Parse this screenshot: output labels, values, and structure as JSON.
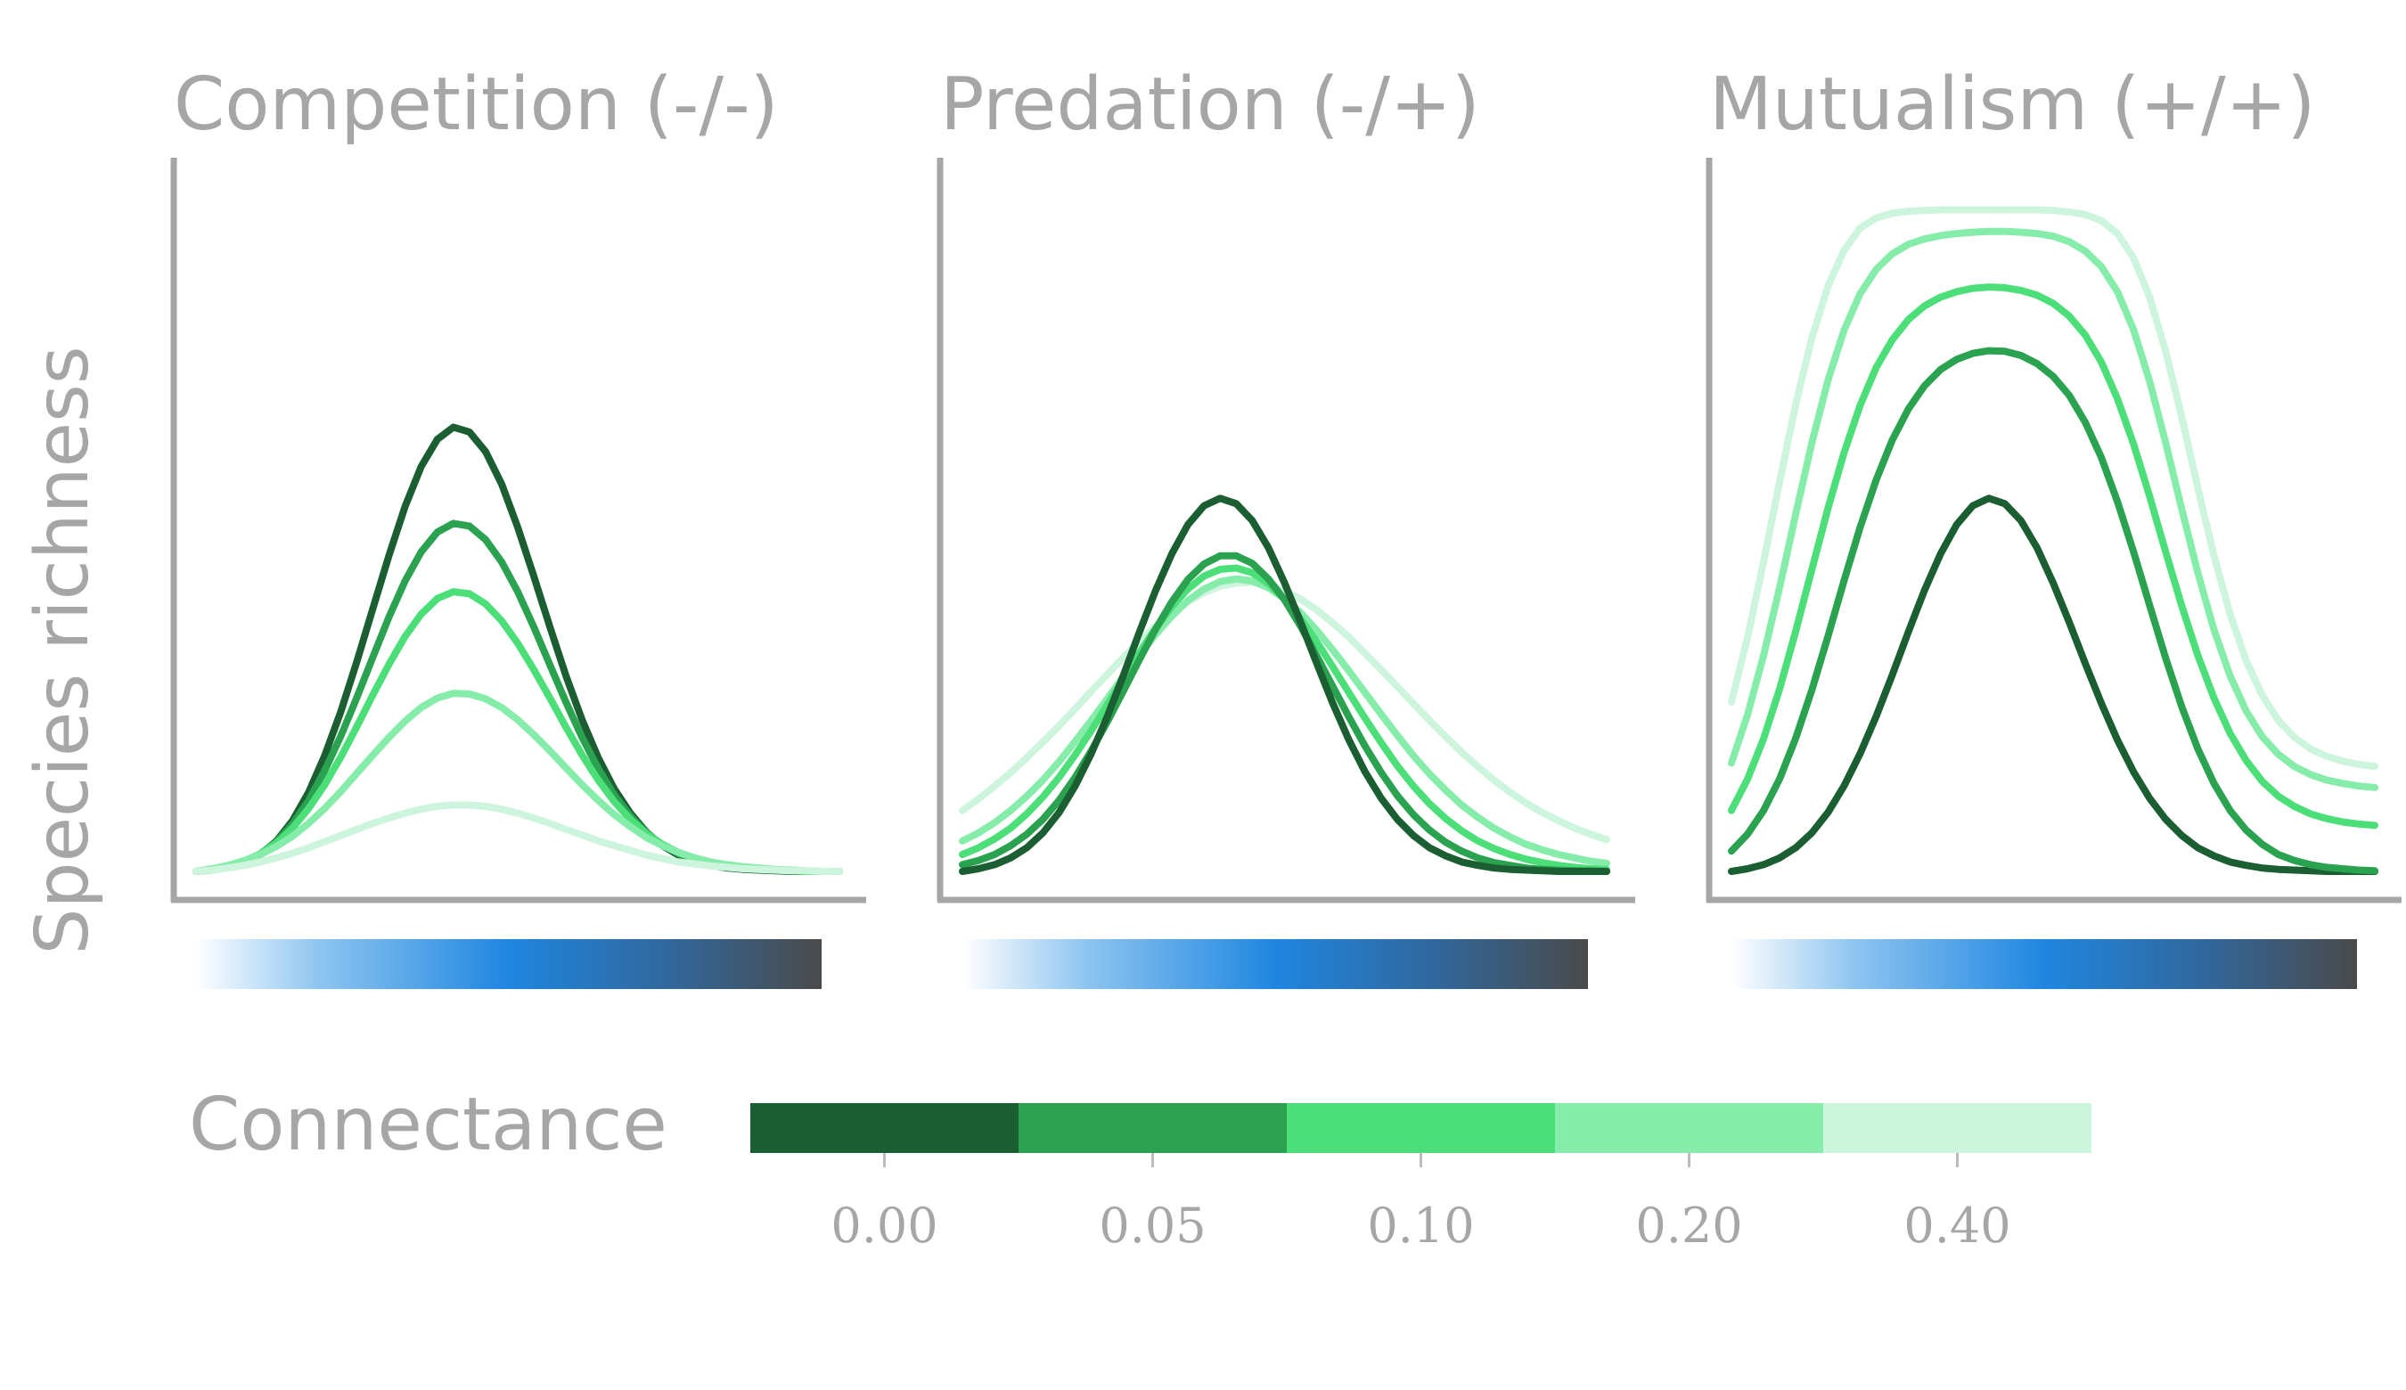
{
  "chart_data": {
    "type": "line",
    "ylabel": "Species richness",
    "legend": {
      "title": "Connectance",
      "entries": [
        {
          "label": "0.00",
          "color": "#1b5e32"
        },
        {
          "label": "0.05",
          "color": "#2aa24f"
        },
        {
          "label": "0.10",
          "color": "#4cde78"
        },
        {
          "label": "0.20",
          "color": "#86ecaa"
        },
        {
          "label": "0.40",
          "color": "#cdf4dc"
        }
      ]
    },
    "gradient_bar": {
      "colors": [
        "#ffffff",
        "#8cc4f0",
        "#1f86e0",
        "#30689e",
        "#4a4a4a"
      ]
    },
    "x": [
      0.0,
      0.025,
      0.05,
      0.075,
      0.1,
      0.125,
      0.15,
      0.175,
      0.2,
      0.225,
      0.25,
      0.275,
      0.3,
      0.325,
      0.35,
      0.375,
      0.4,
      0.425,
      0.45,
      0.475,
      0.5,
      0.525,
      0.55,
      0.575,
      0.6,
      0.625,
      0.65,
      0.675,
      0.7,
      0.725,
      0.75,
      0.775,
      0.8,
      0.825,
      0.85,
      0.875,
      0.9,
      0.925,
      0.95,
      0.975,
      1.0
    ],
    "ylim": [
      0,
      1
    ],
    "panels": [
      {
        "title": "Competition (-/-)",
        "series": [
          {
            "connectance": "0.00",
            "color": "#1b5e32",
            "values": [
              0.0,
              0.002,
              0.006,
              0.013,
              0.025,
              0.045,
              0.075,
              0.117,
              0.171,
              0.236,
              0.31,
              0.389,
              0.467,
              0.539,
              0.598,
              0.638,
              0.656,
              0.649,
              0.62,
              0.572,
              0.508,
              0.436,
              0.361,
              0.289,
              0.224,
              0.168,
              0.122,
              0.086,
              0.058,
              0.038,
              0.024,
              0.015,
              0.009,
              0.005,
              0.003,
              0.002,
              0.001,
              0.0,
              0.0,
              0.0,
              0.0
            ]
          },
          {
            "connectance": "0.05",
            "color": "#2aa24f",
            "values": [
              0.0,
              0.003,
              0.007,
              0.014,
              0.026,
              0.044,
              0.07,
              0.105,
              0.149,
              0.2,
              0.257,
              0.317,
              0.376,
              0.429,
              0.472,
              0.501,
              0.514,
              0.51,
              0.49,
              0.457,
              0.413,
              0.361,
              0.305,
              0.25,
              0.198,
              0.152,
              0.113,
              0.082,
              0.057,
              0.039,
              0.026,
              0.017,
              0.011,
              0.007,
              0.004,
              0.003,
              0.002,
              0.001,
              0.0,
              0.0,
              0.0
            ]
          },
          {
            "connectance": "0.10",
            "color": "#4cde78",
            "values": [
              0.0,
              0.003,
              0.008,
              0.015,
              0.026,
              0.042,
              0.064,
              0.093,
              0.128,
              0.169,
              0.214,
              0.261,
              0.306,
              0.347,
              0.38,
              0.403,
              0.413,
              0.41,
              0.395,
              0.37,
              0.337,
              0.298,
              0.256,
              0.213,
              0.172,
              0.135,
              0.103,
              0.077,
              0.056,
              0.04,
              0.028,
              0.019,
              0.013,
              0.008,
              0.005,
              0.003,
              0.002,
              0.001,
              0.0,
              0.0,
              0.0
            ]
          },
          {
            "connectance": "0.20",
            "color": "#86ecaa",
            "values": [
              0.0,
              0.004,
              0.009,
              0.016,
              0.025,
              0.037,
              0.052,
              0.071,
              0.093,
              0.118,
              0.145,
              0.172,
              0.198,
              0.222,
              0.242,
              0.256,
              0.263,
              0.262,
              0.255,
              0.242,
              0.224,
              0.202,
              0.178,
              0.153,
              0.128,
              0.105,
              0.084,
              0.066,
              0.05,
              0.038,
              0.028,
              0.02,
              0.014,
              0.01,
              0.007,
              0.005,
              0.003,
              0.002,
              0.001,
              0.0,
              0.0
            ]
          },
          {
            "connectance": "0.40",
            "color": "#cdf4dc",
            "values": [
              0.0,
              0.002,
              0.005,
              0.009,
              0.014,
              0.02,
              0.027,
              0.035,
              0.044,
              0.053,
              0.062,
              0.071,
              0.079,
              0.086,
              0.092,
              0.096,
              0.098,
              0.098,
              0.096,
              0.092,
              0.086,
              0.079,
              0.071,
              0.062,
              0.054,
              0.045,
              0.038,
              0.031,
              0.024,
              0.019,
              0.014,
              0.011,
              0.008,
              0.006,
              0.004,
              0.003,
              0.002,
              0.001,
              0.001,
              0.0,
              0.0
            ]
          }
        ]
      },
      {
        "title": "Predation (-/+)",
        "series": [
          {
            "connectance": "0.40",
            "color": "#cdf4dc",
            "values": [
              0.09,
              0.107,
              0.126,
              0.146,
              0.168,
              0.191,
              0.215,
              0.24,
              0.266,
              0.291,
              0.316,
              0.34,
              0.362,
              0.382,
              0.398,
              0.412,
              0.421,
              0.426,
              0.427,
              0.423,
              0.414,
              0.402,
              0.386,
              0.367,
              0.346,
              0.322,
              0.298,
              0.273,
              0.248,
              0.223,
              0.199,
              0.176,
              0.155,
              0.135,
              0.117,
              0.101,
              0.087,
              0.075,
              0.064,
              0.055,
              0.047
            ]
          },
          {
            "connectance": "0.20",
            "color": "#86ecaa",
            "values": [
              0.045,
              0.057,
              0.072,
              0.09,
              0.111,
              0.135,
              0.162,
              0.192,
              0.223,
              0.255,
              0.288,
              0.32,
              0.35,
              0.377,
              0.4,
              0.417,
              0.428,
              0.432,
              0.429,
              0.419,
              0.403,
              0.382,
              0.356,
              0.327,
              0.296,
              0.264,
              0.232,
              0.201,
              0.171,
              0.144,
              0.12,
              0.098,
              0.08,
              0.064,
              0.051,
              0.04,
              0.032,
              0.025,
              0.02,
              0.015,
              0.012
            ]
          },
          {
            "connectance": "0.10",
            "color": "#4cde78",
            "values": [
              0.025,
              0.035,
              0.048,
              0.064,
              0.085,
              0.11,
              0.139,
              0.172,
              0.208,
              0.246,
              0.285,
              0.323,
              0.359,
              0.391,
              0.417,
              0.436,
              0.446,
              0.448,
              0.441,
              0.425,
              0.402,
              0.373,
              0.339,
              0.302,
              0.264,
              0.226,
              0.19,
              0.156,
              0.126,
              0.1,
              0.078,
              0.06,
              0.045,
              0.034,
              0.025,
              0.018,
              0.013,
              0.009,
              0.006,
              0.004,
              0.003
            ]
          },
          {
            "connectance": "0.05",
            "color": "#2aa24f",
            "values": [
              0.01,
              0.016,
              0.025,
              0.038,
              0.055,
              0.077,
              0.105,
              0.139,
              0.178,
              0.221,
              0.267,
              0.313,
              0.358,
              0.398,
              0.431,
              0.454,
              0.466,
              0.466,
              0.455,
              0.432,
              0.401,
              0.362,
              0.318,
              0.273,
              0.228,
              0.185,
              0.146,
              0.112,
              0.084,
              0.061,
              0.043,
              0.03,
              0.02,
              0.013,
              0.009,
              0.005,
              0.003,
              0.002,
              0.001,
              0.001,
              0.0
            ]
          },
          {
            "connectance": "0.00",
            "color": "#1b5e32",
            "values": [
              0.0,
              0.004,
              0.01,
              0.02,
              0.035,
              0.057,
              0.087,
              0.126,
              0.174,
              0.229,
              0.29,
              0.354,
              0.415,
              0.469,
              0.512,
              0.54,
              0.551,
              0.543,
              0.518,
              0.478,
              0.426,
              0.368,
              0.307,
              0.248,
              0.194,
              0.147,
              0.108,
              0.077,
              0.053,
              0.035,
              0.023,
              0.014,
              0.009,
              0.005,
              0.003,
              0.002,
              0.001,
              0.0,
              0.0,
              0.0,
              0.0
            ]
          }
        ]
      },
      {
        "title": "Mutualism (+/+)",
        "series": [
          {
            "connectance": "0.00",
            "color": "#1b5e32",
            "values": [
              0.0,
              0.004,
              0.01,
              0.02,
              0.035,
              0.057,
              0.087,
              0.126,
              0.174,
              0.229,
              0.29,
              0.354,
              0.415,
              0.469,
              0.512,
              0.54,
              0.551,
              0.543,
              0.518,
              0.478,
              0.426,
              0.368,
              0.307,
              0.248,
              0.194,
              0.147,
              0.108,
              0.077,
              0.053,
              0.035,
              0.023,
              0.014,
              0.009,
              0.005,
              0.003,
              0.002,
              0.001,
              0.0,
              0.0,
              0.0,
              0.0
            ]
          },
          {
            "connectance": "0.05",
            "color": "#2aa24f",
            "values": [
              0.03,
              0.055,
              0.09,
              0.137,
              0.197,
              0.268,
              0.347,
              0.429,
              0.508,
              0.578,
              0.637,
              0.683,
              0.717,
              0.741,
              0.756,
              0.765,
              0.769,
              0.768,
              0.762,
              0.75,
              0.731,
              0.703,
              0.663,
              0.611,
              0.546,
              0.472,
              0.393,
              0.315,
              0.243,
              0.181,
              0.13,
              0.09,
              0.061,
              0.04,
              0.025,
              0.016,
              0.01,
              0.006,
              0.004,
              0.002,
              0.001
            ]
          },
          {
            "connectance": "0.10",
            "color": "#4cde78",
            "values": [
              0.09,
              0.136,
              0.196,
              0.27,
              0.355,
              0.446,
              0.536,
              0.618,
              0.688,
              0.744,
              0.785,
              0.815,
              0.835,
              0.848,
              0.856,
              0.861,
              0.863,
              0.862,
              0.858,
              0.851,
              0.839,
              0.82,
              0.792,
              0.752,
              0.698,
              0.631,
              0.554,
              0.472,
              0.392,
              0.319,
              0.256,
              0.204,
              0.164,
              0.133,
              0.111,
              0.096,
              0.085,
              0.078,
              0.073,
              0.07,
              0.068
            ]
          },
          {
            "connectance": "0.20",
            "color": "#86ecaa",
            "values": [
              0.16,
              0.231,
              0.319,
              0.42,
              0.528,
              0.633,
              0.725,
              0.799,
              0.853,
              0.889,
              0.912,
              0.926,
              0.934,
              0.939,
              0.942,
              0.944,
              0.945,
              0.945,
              0.944,
              0.942,
              0.938,
              0.93,
              0.916,
              0.893,
              0.856,
              0.8,
              0.724,
              0.633,
              0.535,
              0.441,
              0.357,
              0.289,
              0.237,
              0.199,
              0.173,
              0.155,
              0.143,
              0.135,
              0.13,
              0.126,
              0.124
            ]
          },
          {
            "connectance": "0.40",
            "color": "#cdf4dc",
            "values": [
              0.25,
              0.345,
              0.457,
              0.576,
              0.69,
              0.788,
              0.864,
              0.917,
              0.95,
              0.965,
              0.972,
              0.975,
              0.976,
              0.977,
              0.977,
              0.977,
              0.977,
              0.977,
              0.977,
              0.977,
              0.976,
              0.974,
              0.97,
              0.961,
              0.942,
              0.906,
              0.848,
              0.768,
              0.671,
              0.566,
              0.466,
              0.38,
              0.311,
              0.26,
              0.223,
              0.198,
              0.181,
              0.17,
              0.163,
              0.158,
              0.155
            ]
          }
        ]
      }
    ]
  }
}
